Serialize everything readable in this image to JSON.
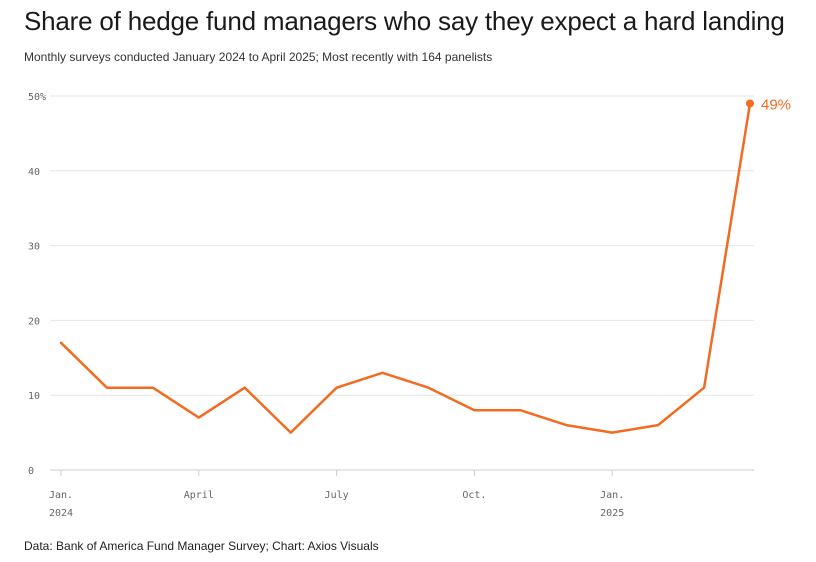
{
  "title": "Share of hedge fund managers who say they expect a hard landing",
  "subtitle": "Monthly surveys conducted January 2024 to April 2025; Most recently with 164 panelists",
  "source": "Data: Bank of America Fund Manager Survey; Chart: Axios Visuals",
  "colors": {
    "line": "#f26b21",
    "grid": "#e6e6e6",
    "axis": "#cccccc",
    "tick_text": "#666666"
  },
  "chart_data": {
    "type": "line",
    "title": "Share of hedge fund managers who say they expect a hard landing",
    "xlabel": "",
    "ylabel": "",
    "x": [
      "2024-01",
      "2024-02",
      "2024-03",
      "2024-04",
      "2024-05",
      "2024-06",
      "2024-07",
      "2024-08",
      "2024-09",
      "2024-10",
      "2024-11",
      "2024-12",
      "2025-01",
      "2025-02",
      "2025-03",
      "2025-04"
    ],
    "series": [
      {
        "values": [
          17,
          11,
          11,
          7,
          11,
          5,
          11,
          13,
          11,
          8,
          8,
          6,
          5,
          6,
          11,
          49
        ]
      }
    ],
    "ylim": [
      0,
      50
    ],
    "y_ticks": [
      {
        "value": 0,
        "label": "0"
      },
      {
        "value": 10,
        "label": "10"
      },
      {
        "value": 20,
        "label": "20"
      },
      {
        "value": 30,
        "label": "30"
      },
      {
        "value": 40,
        "label": "40"
      },
      {
        "value": 50,
        "label": "50%"
      }
    ],
    "x_ticks": [
      {
        "index": 0,
        "line1": "Jan.",
        "line2": "2024"
      },
      {
        "index": 3,
        "line1": "April",
        "line2": ""
      },
      {
        "index": 6,
        "line1": "July",
        "line2": ""
      },
      {
        "index": 9,
        "line1": "Oct.",
        "line2": ""
      },
      {
        "index": 12,
        "line1": "Jan.",
        "line2": "2025"
      }
    ],
    "end_label": "49%",
    "grid": true
  }
}
